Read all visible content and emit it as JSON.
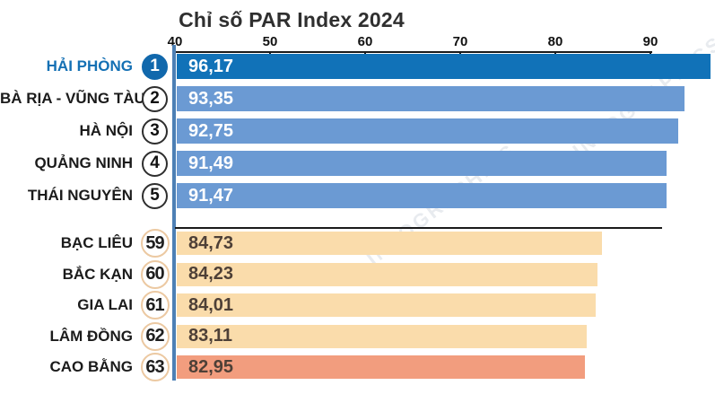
{
  "title": "Chỉ số PAR Index 2024",
  "watermark": "INFOGRAPHICS",
  "colors": {
    "bar_rank1": "#1172b8",
    "bar_top_group": "#6b9ad3",
    "bar_bottom_group": "#fadcab",
    "bar_last": "#f29d7e",
    "axis_line": "#4d80b5",
    "rank1_badge": "#1168ac",
    "label_first": "#1470b4",
    "value_text_top": "#ffffff",
    "value_text_bottom": "#4e4037"
  },
  "chart_data": {
    "type": "bar",
    "orientation": "horizontal",
    "title": "Chỉ số PAR Index 2024",
    "xlabel": "",
    "ylabel": "",
    "xlim": [
      40,
      97
    ],
    "x_ticks": [
      40,
      50,
      60,
      70,
      80,
      90
    ],
    "x_tick_labels": [
      "40",
      "50",
      "60",
      "70",
      "80",
      "90"
    ],
    "grid": false,
    "legend": false,
    "axis_position": "top",
    "groups": [
      {
        "name": "top5",
        "rows": [
          {
            "rank": "1",
            "label": "HẢI PHÒNG",
            "value": 96.17,
            "value_label": "96,17",
            "color": "#1172b8"
          },
          {
            "rank": "2",
            "label": "BÀ RỊA - VŨNG TÀU",
            "value": 93.35,
            "value_label": "93,35",
            "color": "#6b9ad3"
          },
          {
            "rank": "3",
            "label": "HÀ NỘI",
            "value": 92.75,
            "value_label": "92,75",
            "color": "#6b9ad3"
          },
          {
            "rank": "4",
            "label": "QUẢNG NINH",
            "value": 91.49,
            "value_label": "91,49",
            "color": "#6b9ad3"
          },
          {
            "rank": "5",
            "label": "THÁI NGUYÊN",
            "value": 91.47,
            "value_label": "91,47",
            "color": "#6b9ad3"
          }
        ]
      },
      {
        "name": "bottom5",
        "rows": [
          {
            "rank": "59",
            "label": "BẠC LIÊU",
            "value": 84.73,
            "value_label": "84,73",
            "color": "#fadcab"
          },
          {
            "rank": "60",
            "label": "BẮC KẠN",
            "value": 84.23,
            "value_label": "84,23",
            "color": "#fadcab"
          },
          {
            "rank": "61",
            "label": "GIA LAI",
            "value": 84.01,
            "value_label": "84,01",
            "color": "#fadcab"
          },
          {
            "rank": "62",
            "label": "LÂM ĐỒNG",
            "value": 83.11,
            "value_label": "83,11",
            "color": "#fadcab"
          },
          {
            "rank": "63",
            "label": "CAO BẰNG",
            "value": 82.95,
            "value_label": "82,95",
            "color": "#f29d7e"
          }
        ]
      }
    ]
  }
}
